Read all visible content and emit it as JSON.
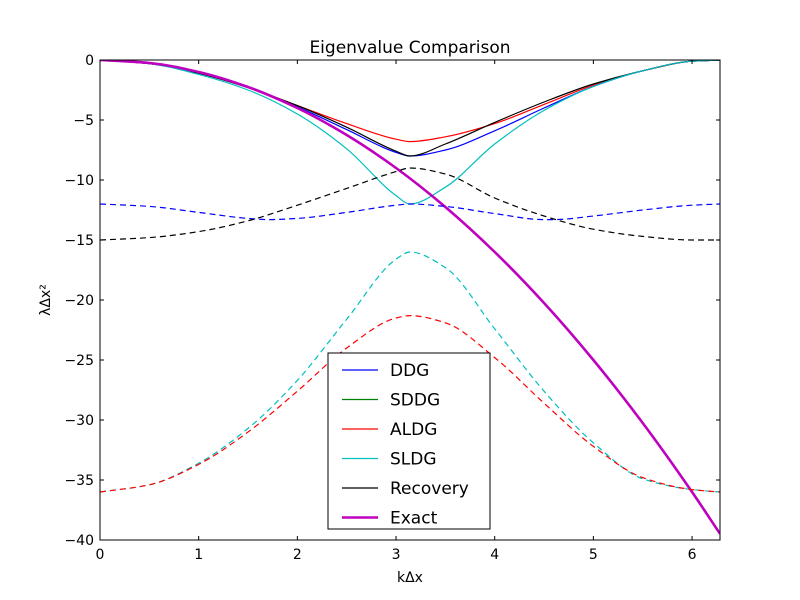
{
  "chart_data": {
    "type": "line",
    "title": "Eigenvalue Comparison",
    "xlabel": "kΔx",
    "ylabel": "λΔx²",
    "xlim": [
      0,
      6.2832
    ],
    "ylim": [
      -40,
      0
    ],
    "xticks": [
      0,
      1,
      2,
      3,
      4,
      5,
      6
    ],
    "yticks": [
      0,
      -5,
      -10,
      -15,
      -20,
      -25,
      -30,
      -35,
      -40
    ],
    "xtick_labels": [
      "0",
      "1",
      "2",
      "3",
      "4",
      "5",
      "6"
    ],
    "ytick_labels": [
      "0",
      "−5",
      "−10",
      "−15",
      "−20",
      "−25",
      "−30",
      "−35",
      "−40"
    ],
    "grid": false,
    "legend_position": "lower-center",
    "legend": [
      {
        "name": "DDG",
        "color": "#0000ff",
        "style": "solid"
      },
      {
        "name": "SDDG",
        "color": "#008000",
        "style": "solid"
      },
      {
        "name": "ALDG",
        "color": "#ff0000",
        "style": "solid"
      },
      {
        "name": "SLDG",
        "color": "#00bfbf",
        "style": "solid"
      },
      {
        "name": "Recovery",
        "color": "#000000",
        "style": "solid"
      },
      {
        "name": "Exact",
        "color": "#bf00bf",
        "style": "solid",
        "thick": true
      }
    ],
    "series": [
      {
        "color": "#ff0000",
        "style": "solid",
        "x": [
          0,
          0.5,
          1.0,
          1.5,
          2.0,
          2.5,
          3.0,
          3.1416,
          3.5,
          4.0,
          4.5,
          5.0,
          5.5,
          6.0,
          6.2832
        ],
        "y": [
          0,
          -0.3,
          -1.1,
          -2.3,
          -3.8,
          -5.3,
          -6.6,
          -6.8,
          -6.4,
          -5.3,
          -3.7,
          -2.1,
          -0.9,
          -0.1,
          0
        ]
      },
      {
        "color": "#0000ff",
        "style": "solid",
        "x": [
          0,
          0.5,
          1.0,
          1.5,
          2.0,
          2.5,
          3.0,
          3.1416,
          3.5,
          4.0,
          4.5,
          5.0,
          5.5,
          6.0,
          6.2832
        ],
        "y": [
          0,
          -0.3,
          -1.1,
          -2.3,
          -3.9,
          -5.8,
          -7.7,
          -8.0,
          -7.5,
          -5.9,
          -4.0,
          -2.2,
          -0.9,
          -0.1,
          0
        ]
      },
      {
        "color": "#000000",
        "style": "solid",
        "x": [
          0,
          0.5,
          1.0,
          1.5,
          2.0,
          2.5,
          3.0,
          3.1416,
          3.5,
          4.0,
          4.5,
          5.0,
          5.5,
          6.0,
          6.2832
        ],
        "y": [
          0,
          -0.3,
          -1.1,
          -2.3,
          -3.8,
          -5.6,
          -7.6,
          -8.0,
          -7.0,
          -5.2,
          -3.5,
          -2.0,
          -0.9,
          -0.1,
          0
        ]
      },
      {
        "color": "#00bfbf",
        "style": "solid",
        "x": [
          0,
          0.5,
          1.0,
          1.5,
          2.0,
          2.5,
          3.0,
          3.1416,
          3.5,
          4.0,
          4.5,
          5.0,
          5.5,
          6.0,
          6.2832
        ],
        "y": [
          0,
          -0.3,
          -1.2,
          -2.5,
          -4.5,
          -7.4,
          -11.3,
          -12.0,
          -10.6,
          -7.0,
          -4.2,
          -2.2,
          -0.9,
          -0.1,
          0
        ]
      },
      {
        "color": "#bf00bf",
        "style": "solid",
        "thick": true,
        "x": [
          0,
          0.5,
          1.0,
          1.5,
          2.0,
          2.5,
          3.0,
          3.5,
          4.0,
          4.5,
          5.0,
          5.5,
          6.0,
          6.2832
        ],
        "y": [
          0,
          -0.25,
          -1.0,
          -2.25,
          -4.0,
          -6.25,
          -9.0,
          -12.25,
          -16.0,
          -20.25,
          -25.0,
          -30.25,
          -36.0,
          -39.48
        ]
      },
      {
        "color": "#0000ff",
        "style": "dashed",
        "x": [
          0,
          0.5,
          1.0,
          1.5,
          1.7,
          2.0,
          2.5,
          3.0,
          3.1416,
          3.5,
          4.0,
          4.5,
          4.6,
          5.0,
          5.5,
          6.0,
          6.2832
        ],
        "y": [
          -12.0,
          -12.2,
          -12.7,
          -13.2,
          -13.3,
          -13.2,
          -12.7,
          -12.1,
          -12.0,
          -12.2,
          -12.8,
          -13.3,
          -13.3,
          -13.0,
          -12.5,
          -12.1,
          -12.0
        ]
      },
      {
        "color": "#000000",
        "style": "dashed",
        "x": [
          0,
          0.5,
          1.0,
          1.5,
          2.0,
          2.5,
          3.0,
          3.1416,
          3.5,
          4.0,
          4.5,
          5.0,
          5.5,
          6.0,
          6.2832
        ],
        "y": [
          -15.0,
          -14.8,
          -14.3,
          -13.4,
          -12.1,
          -10.7,
          -9.3,
          -9.0,
          -9.5,
          -11.5,
          -13.0,
          -14.1,
          -14.7,
          -15.0,
          -15.0
        ]
      },
      {
        "color": "#00bfbf",
        "style": "dashed",
        "x": [
          0,
          0.5,
          1.0,
          1.5,
          2.0,
          2.5,
          3.0,
          3.1416,
          3.5,
          4.0,
          4.5,
          5.0,
          5.5,
          6.0,
          6.2832
        ],
        "y": [
          -36.0,
          -35.4,
          -33.6,
          -30.7,
          -26.7,
          -21.6,
          -16.6,
          -16.0,
          -17.3,
          -22.4,
          -27.6,
          -31.9,
          -34.9,
          -35.8,
          -36.0
        ]
      },
      {
        "color": "#ff0000",
        "style": "dashed",
        "x": [
          0,
          0.5,
          1.0,
          1.5,
          2.0,
          2.5,
          3.0,
          3.1416,
          3.5,
          4.0,
          4.5,
          5.0,
          5.5,
          6.0,
          6.2832
        ],
        "y": [
          -36.0,
          -35.4,
          -33.7,
          -31.0,
          -27.6,
          -24.0,
          -21.5,
          -21.3,
          -21.9,
          -24.8,
          -28.6,
          -32.2,
          -34.8,
          -35.8,
          -36.0
        ]
      }
    ]
  }
}
